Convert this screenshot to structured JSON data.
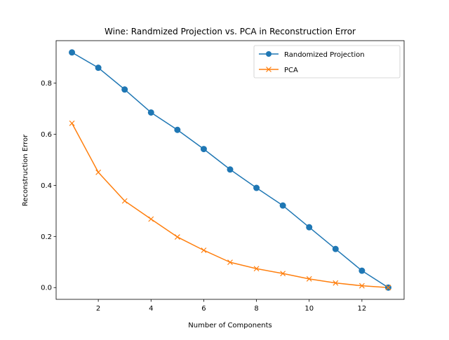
{
  "chart_data": {
    "type": "line",
    "title": "Wine: Randmized Projection vs. PCA in Reconstruction Error",
    "xlabel": "Number of Components",
    "ylabel": "Reconstruction Error",
    "x": [
      1,
      2,
      3,
      4,
      5,
      6,
      7,
      8,
      9,
      10,
      11,
      12,
      13
    ],
    "xlim": [
      0.4,
      13.6
    ],
    "ylim": [
      -0.046,
      0.966
    ],
    "xticks": [
      2,
      4,
      6,
      8,
      10,
      12
    ],
    "yticks": [
      0.0,
      0.2,
      0.4,
      0.6,
      0.8
    ],
    "ytick_labels": [
      "0.0",
      "0.2",
      "0.4",
      "0.6",
      "0.8"
    ],
    "grid": false,
    "legend_position": "top-right",
    "series": [
      {
        "name": "Randomized Projection",
        "color": "#1f77b4",
        "marker": "circle",
        "values": [
          0.92,
          0.86,
          0.775,
          0.685,
          0.617,
          0.542,
          0.462,
          0.39,
          0.321,
          0.236,
          0.151,
          0.066,
          0.0
        ]
      },
      {
        "name": "PCA",
        "color": "#ff7f0e",
        "marker": "x",
        "values": [
          0.643,
          0.451,
          0.339,
          0.268,
          0.198,
          0.146,
          0.099,
          0.074,
          0.055,
          0.034,
          0.018,
          0.007,
          0.0
        ]
      }
    ]
  }
}
